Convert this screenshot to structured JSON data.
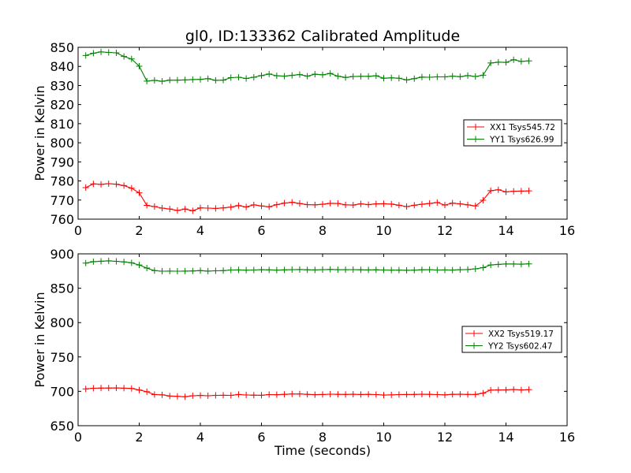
{
  "chart_data": [
    {
      "type": "line",
      "title": "gl0, ID:133362 Calibrated Amplitude",
      "xlabel": "",
      "ylabel": "Power in Kelvin",
      "xlim": [
        0,
        16
      ],
      "ylim": [
        760,
        850
      ],
      "xticks": [
        0,
        2,
        4,
        6,
        8,
        10,
        12,
        14,
        16
      ],
      "yticks": [
        760,
        770,
        780,
        790,
        800,
        810,
        820,
        830,
        840,
        850
      ],
      "legend_position": "center-right",
      "grid": false,
      "x": [
        0.25,
        0.5,
        0.75,
        1.0,
        1.25,
        1.5,
        1.75,
        2.0,
        2.25,
        2.5,
        2.75,
        3.0,
        3.25,
        3.5,
        3.75,
        4.0,
        4.25,
        4.5,
        4.75,
        5.0,
        5.25,
        5.5,
        5.75,
        6.0,
        6.25,
        6.5,
        6.75,
        7.0,
        7.25,
        7.5,
        7.75,
        8.0,
        8.25,
        8.5,
        8.75,
        9.0,
        9.25,
        9.5,
        9.75,
        10.0,
        10.25,
        10.5,
        10.75,
        11.0,
        11.25,
        11.5,
        11.75,
        12.0,
        12.25,
        12.5,
        12.75,
        13.0,
        13.25,
        13.5,
        13.75,
        14.0,
        14.25,
        14.5,
        14.75
      ],
      "series": [
        {
          "name": "XX1 Tsys545.72",
          "color": "#ff0000",
          "values": [
            776.5,
            778.5,
            778.2,
            778.6,
            778.3,
            777.6,
            776.2,
            773.8,
            767.2,
            766.6,
            765.8,
            765.3,
            764.6,
            765.3,
            764.4,
            765.9,
            765.8,
            765.6,
            765.9,
            766.3,
            767.1,
            766.4,
            767.5,
            766.9,
            766.5,
            767.6,
            768.4,
            768.8,
            768.2,
            767.6,
            767.5,
            767.8,
            768.3,
            768.2,
            767.5,
            767.4,
            768.0,
            767.6,
            768.0,
            768.1,
            767.9,
            767.3,
            766.6,
            767.3,
            767.8,
            768.2,
            768.7,
            767.4,
            768.4,
            768.0,
            767.5,
            766.9,
            769.9,
            774.9,
            775.4,
            774.3,
            774.6,
            774.7,
            774.8
          ]
        },
        {
          "name": "YY1 Tsys626.99",
          "color": "#008000",
          "values": [
            845.7,
            846.9,
            847.6,
            847.3,
            847.1,
            845.2,
            843.9,
            840.1,
            832.3,
            832.7,
            832.2,
            832.8,
            832.8,
            832.9,
            833.1,
            833.2,
            833.6,
            832.7,
            832.8,
            834.1,
            834.3,
            833.7,
            834.3,
            835.2,
            836.0,
            835.1,
            834.9,
            835.3,
            835.7,
            834.9,
            835.9,
            835.6,
            836.3,
            834.9,
            834.2,
            834.7,
            834.8,
            834.8,
            835.1,
            833.8,
            834.0,
            833.8,
            832.9,
            833.6,
            834.4,
            834.3,
            834.5,
            834.5,
            834.9,
            834.6,
            835.2,
            834.7,
            835.4,
            841.8,
            842.2,
            842.1,
            843.5,
            842.6,
            842.9
          ]
        }
      ]
    },
    {
      "type": "line",
      "title": "",
      "xlabel": "Time (seconds)",
      "ylabel": "Power in Kelvin",
      "xlim": [
        0,
        16
      ],
      "ylim": [
        650,
        900
      ],
      "xticks": [
        0,
        2,
        4,
        6,
        8,
        10,
        12,
        14,
        16
      ],
      "yticks": [
        650,
        700,
        750,
        800,
        850,
        900
      ],
      "legend_position": "center-right",
      "grid": false,
      "x": [
        0.25,
        0.5,
        0.75,
        1.0,
        1.25,
        1.5,
        1.75,
        2.0,
        2.25,
        2.5,
        2.75,
        3.0,
        3.25,
        3.5,
        3.75,
        4.0,
        4.25,
        4.5,
        4.75,
        5.0,
        5.25,
        5.5,
        5.75,
        6.0,
        6.25,
        6.5,
        6.75,
        7.0,
        7.25,
        7.5,
        7.75,
        8.0,
        8.25,
        8.5,
        8.75,
        9.0,
        9.25,
        9.5,
        9.75,
        10.0,
        10.25,
        10.5,
        10.75,
        11.0,
        11.25,
        11.5,
        11.75,
        12.0,
        12.25,
        12.5,
        12.75,
        13.0,
        13.25,
        13.5,
        13.75,
        14.0,
        14.25,
        14.5,
        14.75
      ],
      "series": [
        {
          "name": "XX2 Tsys519.17",
          "color": "#ff0000",
          "values": [
            703.5,
            704.5,
            704.7,
            704.8,
            704.9,
            704.6,
            704.2,
            701.9,
            699.4,
            695.3,
            694.9,
            693.2,
            692.7,
            692.1,
            693.6,
            694.0,
            693.6,
            694.1,
            694.3,
            694.2,
            695.4,
            694.7,
            694.4,
            694.3,
            695.3,
            695.1,
            695.6,
            696.1,
            696.1,
            695.6,
            695.2,
            695.4,
            695.9,
            695.6,
            695.5,
            695.7,
            695.4,
            695.6,
            695.3,
            694.6,
            694.8,
            695.3,
            695.4,
            695.5,
            695.8,
            695.6,
            695.3,
            694.9,
            695.6,
            695.7,
            695.5,
            695.5,
            697.3,
            701.8,
            702.0,
            702.1,
            702.6,
            702.1,
            702.4
          ]
        },
        {
          "name": "YY2 Tsys602.47",
          "color": "#008000",
          "values": [
            886.5,
            888.7,
            889.2,
            889.8,
            889.1,
            888.3,
            886.9,
            883.8,
            879.3,
            875.6,
            874.8,
            874.9,
            874.8,
            874.9,
            875.1,
            875.6,
            874.9,
            875.4,
            875.6,
            876.5,
            876.6,
            876.3,
            876.5,
            876.9,
            876.7,
            876.3,
            876.7,
            877.0,
            877.2,
            876.8,
            876.6,
            877.0,
            877.3,
            876.9,
            876.9,
            877.0,
            876.8,
            876.6,
            876.8,
            876.5,
            876.3,
            876.3,
            876.1,
            876.3,
            876.8,
            877.0,
            876.5,
            876.6,
            876.4,
            876.9,
            877.2,
            878.2,
            879.9,
            883.8,
            884.6,
            885.3,
            885.2,
            885.0,
            885.4
          ]
        }
      ]
    }
  ]
}
